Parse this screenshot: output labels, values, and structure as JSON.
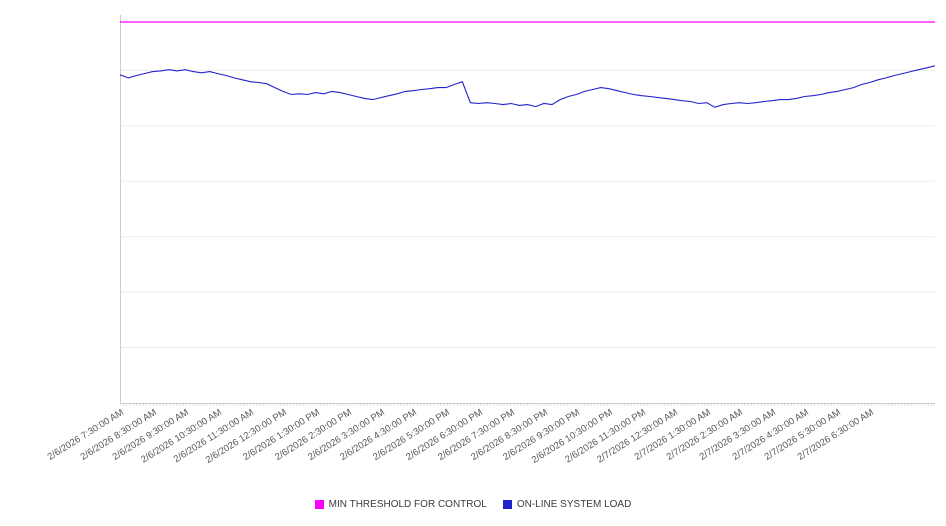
{
  "chart_data": {
    "type": "line",
    "title": "",
    "xlabel": "",
    "ylabel": "",
    "ylim": [
      0,
      100
    ],
    "grid_divisions": 7,
    "points_per_label_interval": 4,
    "legend_position": "bottom",
    "axis": {
      "line_color": "#cccccc",
      "grid_color": "#ebebeb",
      "label_color": "#595959"
    },
    "x_labels": [
      "2/6/2026 7:30:00 AM",
      "2/6/2026 8:30:00 AM",
      "2/6/2026 9:30:00 AM",
      "2/6/2026 10:30:00 AM",
      "2/6/2026 11:30:00 AM",
      "2/6/2026 12:30:00 PM",
      "2/6/2026 1:30:00 PM",
      "2/6/2026 2:30:00 PM",
      "2/6/2026 3:30:00 PM",
      "2/6/2026 4:30:00 PM",
      "2/6/2026 5:30:00 PM",
      "2/6/2026 6:30:00 PM",
      "2/6/2026 7:30:00 PM",
      "2/6/2026 8:30:00 PM",
      "2/6/2026 9:30:00 PM",
      "2/6/2026 10:30:00 PM",
      "2/6/2026 11:30:00 PM",
      "2/7/2026 12:30:00 AM",
      "2/7/2026 1:30:00 AM",
      "2/7/2026 2:30:00 AM",
      "2/7/2026 3:30:00 AM",
      "2/7/2026 4:30:00 AM",
      "2/7/2026 5:30:00 AM",
      "2/7/2026 6:30:00 AM"
    ],
    "series": [
      {
        "name": "MIN THRESHOLD FOR CONTROL",
        "color": "#ff00ff",
        "constant": 98.2
      },
      {
        "name": "ON-LINE SYSTEM LOAD",
        "color": "#2222cc",
        "values": [
          84.6,
          83.8,
          84.4,
          84.9,
          85.4,
          85.6,
          85.9,
          85.6,
          85.9,
          85.4,
          85.1,
          85.4,
          84.9,
          84.4,
          83.8,
          83.3,
          82.8,
          82.6,
          82.3,
          81.3,
          80.3,
          79.5,
          79.7,
          79.5,
          80.0,
          79.7,
          80.3,
          80.0,
          79.5,
          79.0,
          78.5,
          78.2,
          78.7,
          79.2,
          79.7,
          80.3,
          80.5,
          80.8,
          81.0,
          81.3,
          81.3,
          82.1,
          82.8,
          77.4,
          77.2,
          77.4,
          77.2,
          76.9,
          77.2,
          76.7,
          76.9,
          76.4,
          77.2,
          76.9,
          78.2,
          79.0,
          79.5,
          80.3,
          80.8,
          81.3,
          81.0,
          80.5,
          80.0,
          79.5,
          79.2,
          79.0,
          78.7,
          78.5,
          78.2,
          77.9,
          77.7,
          77.2,
          77.4,
          76.2,
          76.9,
          77.2,
          77.4,
          77.2,
          77.4,
          77.7,
          77.9,
          78.2,
          78.2,
          78.5,
          79.0,
          79.2,
          79.5,
          80.0,
          80.3,
          80.8,
          81.3,
          82.1,
          82.6,
          83.3,
          83.8,
          84.4,
          84.9,
          85.4,
          85.9,
          86.4,
          86.9
        ]
      }
    ]
  }
}
